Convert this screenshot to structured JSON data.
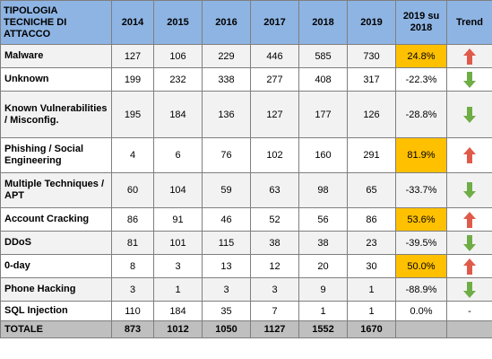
{
  "table": {
    "headers": [
      "TIPOLOGIA TECNICHE DI ATTACCO",
      "2014",
      "2015",
      "2016",
      "2017",
      "2018",
      "2019",
      "2019 su 2018",
      "Trend"
    ],
    "rows": [
      {
        "label": "Malware",
        "values": [
          "127",
          "106",
          "229",
          "446",
          "585",
          "730"
        ],
        "delta": "24.8%",
        "highlight": true,
        "trend": "up"
      },
      {
        "label": "Unknown",
        "values": [
          "199",
          "232",
          "338",
          "277",
          "408",
          "317"
        ],
        "delta": "-22.3%",
        "highlight": false,
        "trend": "down"
      },
      {
        "label": "Known Vulnerabilities / Misconfig.",
        "values": [
          "195",
          "184",
          "136",
          "127",
          "177",
          "126"
        ],
        "delta": "-28.8%",
        "highlight": false,
        "trend": "down"
      },
      {
        "label": "Phishing / Social Engineering",
        "values": [
          "4",
          "6",
          "76",
          "102",
          "160",
          "291"
        ],
        "delta": "81.9%",
        "highlight": true,
        "trend": "up"
      },
      {
        "label": "Multiple Techniques / APT",
        "values": [
          "60",
          "104",
          "59",
          "63",
          "98",
          "65"
        ],
        "delta": "-33.7%",
        "highlight": false,
        "trend": "down"
      },
      {
        "label": "Account Cracking",
        "values": [
          "86",
          "91",
          "46",
          "52",
          "56",
          "86"
        ],
        "delta": "53.6%",
        "highlight": true,
        "trend": "up"
      },
      {
        "label": "DDoS",
        "values": [
          "81",
          "101",
          "115",
          "38",
          "38",
          "23"
        ],
        "delta": "-39.5%",
        "highlight": false,
        "trend": "down"
      },
      {
        "label": "0-day",
        "values": [
          "8",
          "3",
          "13",
          "12",
          "20",
          "30"
        ],
        "delta": "50.0%",
        "highlight": true,
        "trend": "up"
      },
      {
        "label": "Phone Hacking",
        "values": [
          "3",
          "1",
          "3",
          "3",
          "9",
          "1"
        ],
        "delta": "-88.9%",
        "highlight": false,
        "trend": "down"
      },
      {
        "label": "SQL Injection",
        "values": [
          "110",
          "184",
          "35",
          "7",
          "1",
          "1"
        ],
        "delta": "0.0%",
        "highlight": false,
        "trend": "-"
      }
    ],
    "total": {
      "label": "TOTALE",
      "values": [
        "873",
        "1012",
        "1050",
        "1127",
        "1552",
        "1670"
      ]
    }
  },
  "colors": {
    "header": "#8eb4e3",
    "highlight": "#ffc000",
    "total": "#bfbfbf",
    "up_arrow": "#e05a4a",
    "down_arrow": "#6fad47"
  }
}
